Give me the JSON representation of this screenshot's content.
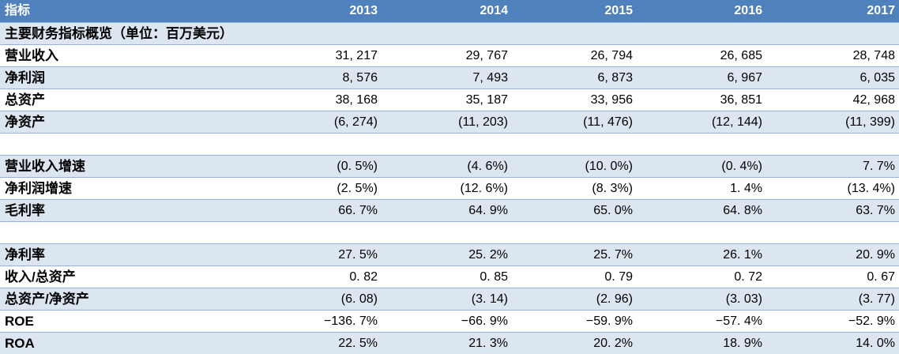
{
  "table": {
    "header": {
      "label": "指标",
      "years": [
        "2013",
        "2014",
        "2015",
        "2016",
        "2017"
      ]
    },
    "section_title": "主要财务指标概览（单位：百万美元）",
    "rows": [
      {
        "label": "营业收入",
        "shaded": false,
        "values": [
          "31, 217",
          "29, 767",
          "26, 794",
          "26, 685",
          "28, 748"
        ]
      },
      {
        "label": "净利润",
        "shaded": true,
        "values": [
          "8, 576",
          "7, 493",
          "6, 873",
          "6, 967",
          "6, 035"
        ]
      },
      {
        "label": "总资产",
        "shaded": false,
        "values": [
          "38, 168",
          "35, 187",
          "33, 956",
          "36, 851",
          "42, 968"
        ]
      },
      {
        "label": "净资产",
        "shaded": true,
        "values": [
          "(6, 274)",
          "(11, 203)",
          "(11, 476)",
          "(12, 144)",
          "(11, 399)"
        ]
      },
      {
        "blank": true
      },
      {
        "label": "营业收入增速",
        "shaded": true,
        "values": [
          "(0. 5%)",
          "(4. 6%)",
          "(10. 0%)",
          "(0. 4%)",
          "7. 7%"
        ]
      },
      {
        "label": "净利润增速",
        "shaded": false,
        "values": [
          "(2. 5%)",
          "(12. 6%)",
          "(8. 3%)",
          "1. 4%",
          "(13. 4%)"
        ]
      },
      {
        "label": "毛利率",
        "shaded": true,
        "values": [
          "66. 7%",
          "64. 9%",
          "65. 0%",
          "64. 8%",
          "63. 7%"
        ]
      },
      {
        "blank": true
      },
      {
        "label": "净利率",
        "shaded": true,
        "values": [
          "27. 5%",
          "25. 2%",
          "25. 7%",
          "26. 1%",
          "20. 9%"
        ]
      },
      {
        "label": "收入/总资产",
        "shaded": false,
        "values": [
          "0. 82",
          "0. 85",
          "0. 79",
          "0. 72",
          "0. 67"
        ]
      },
      {
        "label": "总资产/净资产",
        "shaded": true,
        "values": [
          "(6. 08)",
          "(3. 14)",
          "(2. 96)",
          "(3. 03)",
          "(3. 77)"
        ]
      },
      {
        "label": "ROE",
        "shaded": false,
        "values": [
          "−136. 7%",
          "−66. 9%",
          "−59. 9%",
          "−57. 4%",
          "−52. 9%"
        ]
      },
      {
        "label": "ROA",
        "shaded": true,
        "values": [
          "22. 5%",
          "21. 3%",
          "20. 2%",
          "18. 9%",
          "14. 0%"
        ]
      }
    ]
  },
  "colors": {
    "header_bg": "#4f81bd",
    "header_text": "#ffffff",
    "stripe_bg": "#dce6f1",
    "row_border": "#95b3d7",
    "body_text": "#000000"
  }
}
